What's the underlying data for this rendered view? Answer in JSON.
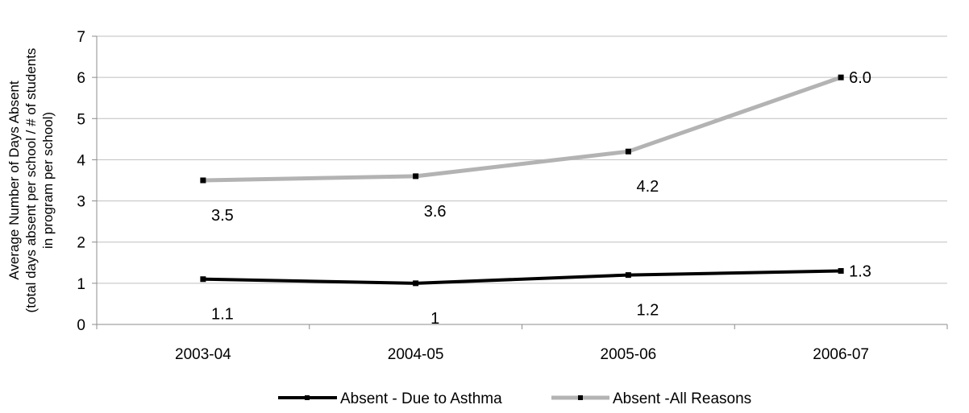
{
  "chart_data": {
    "type": "line",
    "title": "",
    "xlabel": "",
    "ylabel_lines": [
      "Average Number of Days Absent",
      "(total days absent per school / # of students",
      "in program per school)"
    ],
    "categories": [
      "2003-04",
      "2004-05",
      "2005-06",
      "2006-07"
    ],
    "ylim": [
      0,
      7
    ],
    "yticks": [
      "0",
      "1",
      "2",
      "3",
      "4",
      "5",
      "6",
      "7"
    ],
    "grid": true,
    "legend_position": "bottom",
    "series": [
      {
        "name": "Absent - Due to Asthma",
        "values": [
          1.1,
          1.0,
          1.2,
          1.3
        ],
        "labels": [
          "1.1",
          "1",
          "1.2",
          "1.3"
        ],
        "color": "#000000"
      },
      {
        "name": "Absent -All Reasons",
        "values": [
          3.5,
          3.6,
          4.2,
          6.0
        ],
        "labels": [
          "3.5",
          "3.6",
          "4.2",
          "6.0"
        ],
        "color": "#b3b3b3"
      }
    ]
  }
}
